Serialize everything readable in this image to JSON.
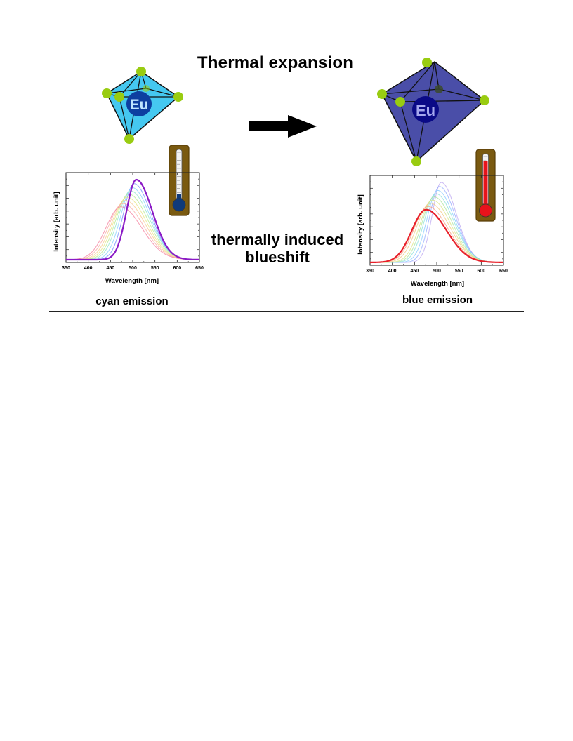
{
  "figure": {
    "title": "Thermal expansion",
    "process_line1": "thermally induced",
    "process_line2": "blueshift",
    "center_ion_label": "Eu"
  },
  "left_panel": {
    "caption": "cyan emission",
    "polyhedron_color": "#45c8f0",
    "thermometer_level": 0.1,
    "thermometer_color": "#0f3a7a"
  },
  "right_panel": {
    "caption": "blue emission",
    "polyhedron_color": "#4a4ea8",
    "thermometer_level": 0.85,
    "thermometer_color": "#e8131b"
  },
  "colors": {
    "ligand": "#99cc11",
    "arrow": "#000000",
    "thermometer_frame": "#7a5a10"
  },
  "chart_data": [
    {
      "type": "line",
      "xlabel": "Wavelength [nm]",
      "ylabel": "Intensity [arb. unit]",
      "xlim": [
        350,
        650
      ],
      "xticks": [
        350,
        400,
        450,
        500,
        550,
        600,
        650
      ],
      "ylim": [
        0,
        1.0
      ],
      "highlight_series": 0,
      "series": [
        {
          "peak": 508,
          "sigma_left": 22,
          "sigma_right": 36,
          "amp": 1.0,
          "color": "#8a1ac6"
        },
        {
          "peak": 503,
          "sigma_left": 24,
          "sigma_right": 38,
          "amp": 0.95,
          "color": "#6a84ff"
        },
        {
          "peak": 499,
          "sigma_left": 26,
          "sigma_right": 40,
          "amp": 0.9,
          "color": "#7fd0ff"
        },
        {
          "peak": 495,
          "sigma_left": 28,
          "sigma_right": 42,
          "amp": 0.86,
          "color": "#8fe6c8"
        },
        {
          "peak": 491,
          "sigma_left": 29,
          "sigma_right": 43,
          "amp": 0.82,
          "color": "#b6e98a"
        },
        {
          "peak": 487,
          "sigma_left": 30,
          "sigma_right": 44,
          "amp": 0.78,
          "color": "#e7e67e"
        },
        {
          "peak": 483,
          "sigma_left": 31,
          "sigma_right": 45,
          "amp": 0.74,
          "color": "#f7c88a"
        },
        {
          "peak": 478,
          "sigma_left": 32,
          "sigma_right": 46,
          "amp": 0.7,
          "color": "#f8a8a0"
        },
        {
          "peak": 473,
          "sigma_left": 33,
          "sigma_right": 47,
          "amp": 0.66,
          "color": "#f47a9a"
        }
      ]
    },
    {
      "type": "line",
      "xlabel": "Wavelength [nm]",
      "ylabel": "Intensity [arb. unit]",
      "xlim": [
        350,
        650
      ],
      "xticks": [
        350,
        400,
        450,
        500,
        550,
        600,
        650
      ],
      "ylim": [
        0,
        1.0
      ],
      "highlight_series": 8,
      "series": [
        {
          "peak": 510,
          "sigma_left": 20,
          "sigma_right": 34,
          "amp": 1.0,
          "color": "#b8a0f0"
        },
        {
          "peak": 506,
          "sigma_left": 22,
          "sigma_right": 36,
          "amp": 0.95,
          "color": "#8fa8ff"
        },
        {
          "peak": 502,
          "sigma_left": 24,
          "sigma_right": 38,
          "amp": 0.9,
          "color": "#80c8ff"
        },
        {
          "peak": 498,
          "sigma_left": 26,
          "sigma_right": 40,
          "amp": 0.86,
          "color": "#86e0d8"
        },
        {
          "peak": 494,
          "sigma_left": 27,
          "sigma_right": 41,
          "amp": 0.82,
          "color": "#a8e49a"
        },
        {
          "peak": 490,
          "sigma_left": 28,
          "sigma_right": 42,
          "amp": 0.78,
          "color": "#d8e47e"
        },
        {
          "peak": 485,
          "sigma_left": 30,
          "sigma_right": 44,
          "amp": 0.74,
          "color": "#f2c67a"
        },
        {
          "peak": 480,
          "sigma_left": 31,
          "sigma_right": 45,
          "amp": 0.7,
          "color": "#f59a78"
        },
        {
          "peak": 476,
          "sigma_left": 32,
          "sigma_right": 46,
          "amp": 0.66,
          "color": "#e8202a"
        }
      ]
    }
  ]
}
